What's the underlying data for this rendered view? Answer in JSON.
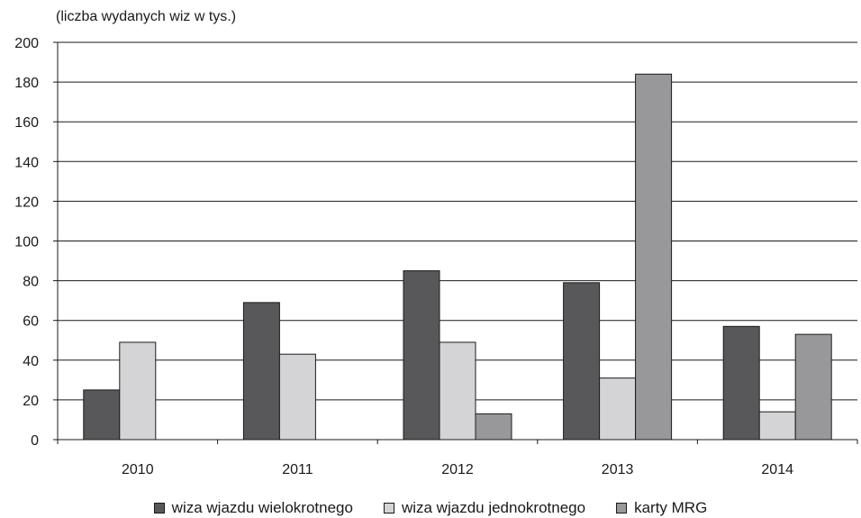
{
  "chart_data": {
    "type": "bar",
    "title": "",
    "ylabel": "(liczba wydanych wiz w tys.)",
    "xlabel": "",
    "ylim": [
      0,
      200
    ],
    "yticks": [
      0,
      20,
      40,
      60,
      80,
      100,
      120,
      140,
      160,
      180,
      200
    ],
    "grid": true,
    "legend_position": "bottom",
    "categories": [
      "2010",
      "2011",
      "2012",
      "2013",
      "2014"
    ],
    "series": [
      {
        "name": "wiza wjazdu wielokrotnego",
        "color": "#58585a",
        "values": [
          25,
          69,
          85,
          79,
          57
        ]
      },
      {
        "name": "wiza wjazdu jednokrotnego",
        "color": "#d4d4d6",
        "values": [
          49,
          43,
          49,
          31,
          14
        ]
      },
      {
        "name": "karty MRG",
        "color": "#98989a",
        "values": [
          null,
          null,
          13,
          184,
          53
        ]
      }
    ]
  }
}
